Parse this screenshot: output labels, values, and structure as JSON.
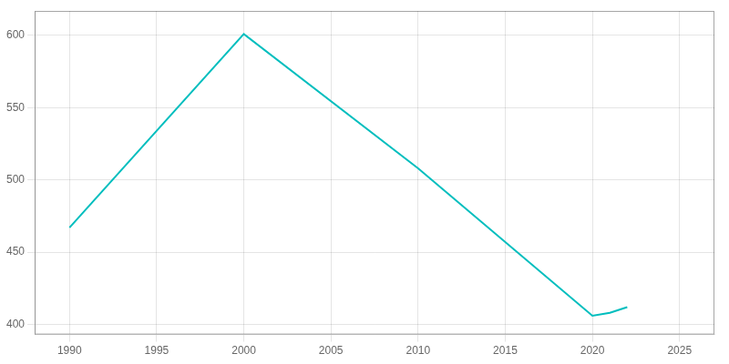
{
  "chart_data": {
    "type": "line",
    "x": [
      1990,
      2000,
      2010,
      2020,
      2021,
      2022
    ],
    "values": [
      467,
      601,
      508,
      406,
      408,
      412
    ],
    "color": "#00BEBE",
    "xlim": [
      1988,
      2027
    ],
    "ylim": [
      393,
      617
    ],
    "xticks": [
      1990,
      1995,
      2000,
      2005,
      2010,
      2015,
      2020,
      2025
    ],
    "yticks": [
      400,
      450,
      500,
      550,
      600
    ],
    "grid": true
  }
}
